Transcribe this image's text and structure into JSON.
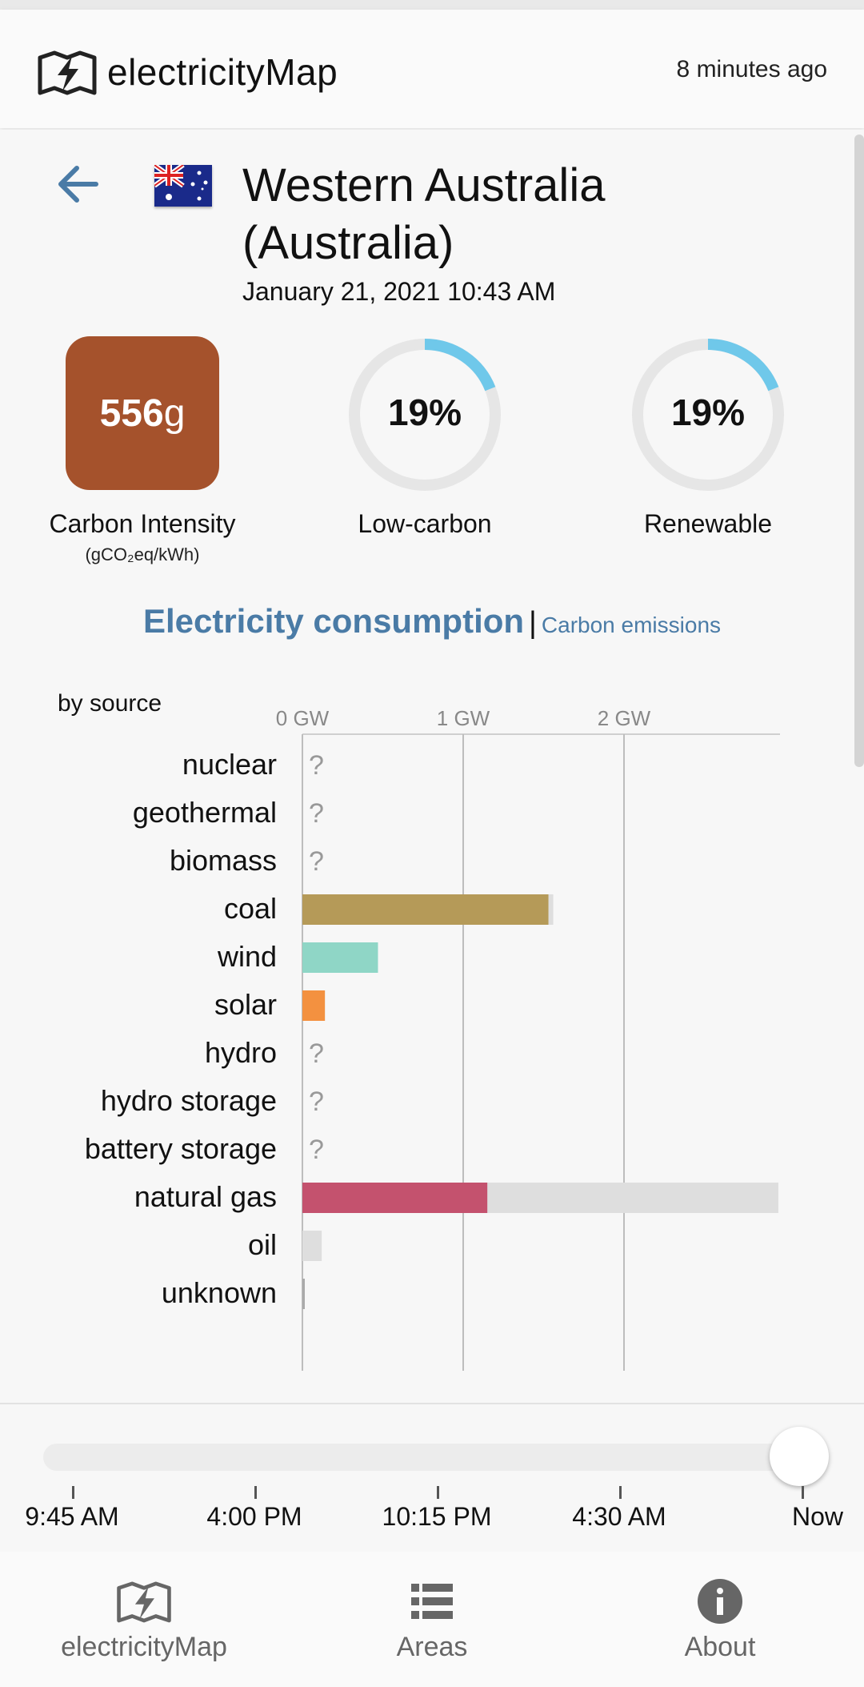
{
  "header": {
    "app_name": "electricityMap",
    "updated": "8 minutes ago"
  },
  "zone": {
    "name": "Western Australia (Australia)",
    "datetime": "January 21, 2021 10:43 AM",
    "flag": "australia-flag"
  },
  "stats": {
    "carbon_intensity_value": "556",
    "carbon_intensity_unit": "g",
    "carbon_intensity_color": "#a5522c",
    "carbon_intensity_label": "Carbon Intensity",
    "carbon_intensity_sublabel": "(gCO₂eq/kWh)",
    "low_carbon_value": "19%",
    "low_carbon_fraction": 0.19,
    "low_carbon_label": "Low-carbon",
    "renewable_value": "19%",
    "renewable_fraction": 0.19,
    "renewable_label": "Renewable",
    "ring_color": "#6fc8ea"
  },
  "tabs": {
    "active": "Electricity consumption",
    "inactive": "Carbon emissions"
  },
  "chart_data": {
    "type": "bar",
    "title": "by source",
    "axis_ticks": [
      "0 GW",
      "1 GW",
      "2 GW"
    ],
    "xlim": [
      0,
      3
    ],
    "unit": "GW",
    "categories": [
      "nuclear",
      "geothermal",
      "biomass",
      "coal",
      "wind",
      "solar",
      "hydro",
      "hydro storage",
      "battery storage",
      "natural gas",
      "oil",
      "unknown"
    ],
    "production": [
      null,
      null,
      null,
      1.53,
      0.47,
      0.14,
      null,
      null,
      null,
      1.15,
      0,
      0.01
    ],
    "capacity": [
      null,
      null,
      null,
      1.56,
      0.47,
      0.14,
      null,
      null,
      null,
      2.96,
      0.12,
      0.01
    ],
    "unknown_marker": "?",
    "colors": {
      "coal": "#b59a58",
      "wind": "#8fd6c6",
      "solar": "#f39140",
      "natural gas": "#c4526e",
      "capacity": "#dedede"
    }
  },
  "timeline": {
    "ticks": [
      "9:45 AM",
      "4:00 PM",
      "10:15 PM",
      "4:30 AM",
      "Now"
    ],
    "position": 1.0
  },
  "bottom_nav": {
    "items": [
      {
        "label": "electricityMap",
        "icon": "map-logo-icon"
      },
      {
        "label": "Areas",
        "icon": "list-icon"
      },
      {
        "label": "About",
        "icon": "info-icon"
      }
    ]
  }
}
